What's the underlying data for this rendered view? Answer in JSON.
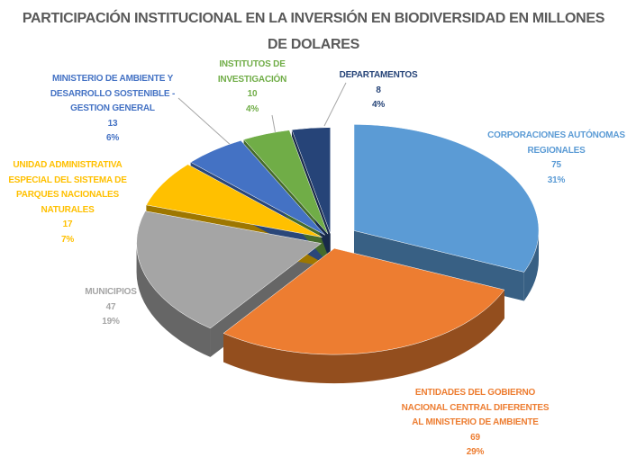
{
  "chart_data": {
    "type": "pie",
    "title": "PARTICIPACIÓN INSTITUCIONAL EN LA INVERSIÓN EN BIODIVERSIDAD EN MILLONES DE DOLARES",
    "categories": [
      "CORPORACIONES AUTÓNOMAS REGIONALES",
      "ENTIDADES DEL GOBIERNO NACIONAL CENTRAL DIFERENTES AL MINISTERIO DE AMBIENTE",
      "MUNICIPIOS",
      "UNIDAD ADMINISTRATIVA ESPECIAL DEL SISTEMA DE PARQUES NACIONALES NATURALES",
      "MINISTERIO DE AMBIENTE Y DESARROLLO SOSTENIBLE - GESTION GENERAL",
      "INSTITUTOS DE INVESTIGACIÓN",
      "DEPARTAMENTOS"
    ],
    "values": [
      75,
      69,
      47,
      17,
      13,
      10,
      8
    ],
    "percent_labels": [
      "31%",
      "29%",
      "19%",
      "7%",
      "6%",
      "4%",
      "4%"
    ],
    "colors": [
      "#5b9bd5",
      "#ed7d31",
      "#a5a5a5",
      "#ffc000",
      "#4472c4",
      "#70ad47",
      "#264478"
    ]
  }
}
